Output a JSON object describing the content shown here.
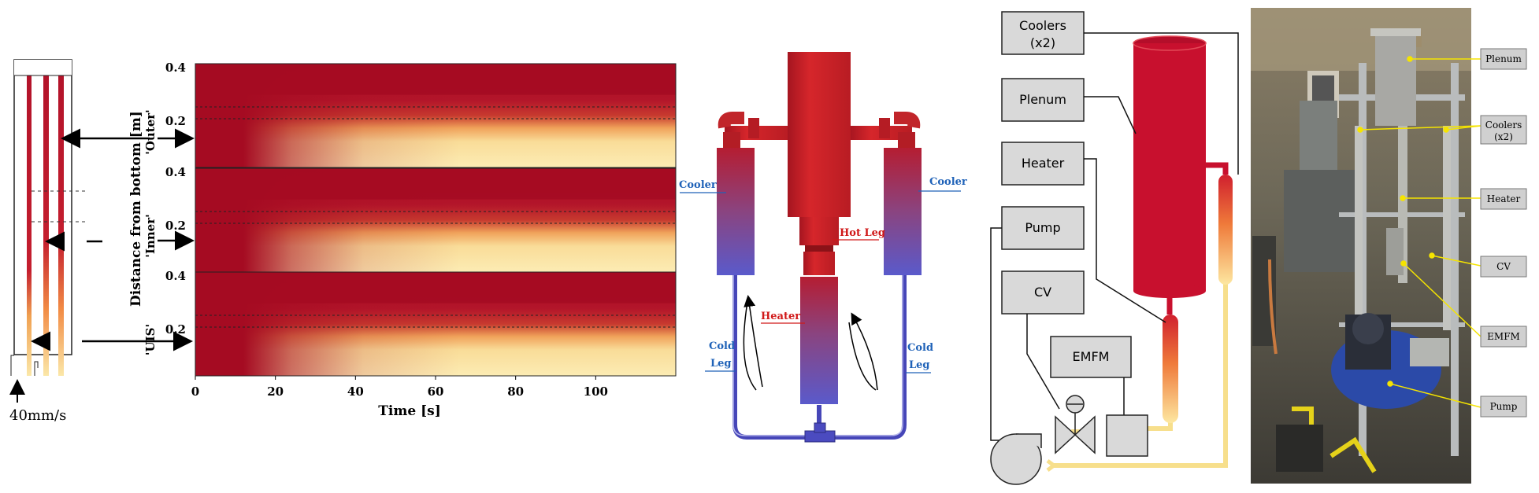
{
  "panel_a": {
    "inlet_velocity": "40mm/s"
  },
  "panel_b": {
    "y_axis_label": "Distance from bottom [m]",
    "x_axis_label": "Time [s]",
    "x_ticks": [
      "0",
      "20",
      "40",
      "60",
      "80",
      "100"
    ],
    "y_ticks": [
      "0.4",
      "0.2"
    ],
    "rows": [
      {
        "label": "'Outer'"
      },
      {
        "label": "'Inner'"
      },
      {
        "label": "'UIS'"
      }
    ],
    "colors": {
      "hot": "#a80d22",
      "mid": "#e8603a",
      "cold": "#fbeaa8"
    }
  },
  "panel_c": {
    "labels": {
      "cooler_left": "Cooler",
      "cooler_right": "Cooler",
      "hot_leg": "Hot Leg",
      "heater": "Heater",
      "cold_leg_left_1": "Cold",
      "cold_leg_left_2": "Leg",
      "cold_leg_right_1": "Cold",
      "cold_leg_right_2": "Leg"
    },
    "colors": {
      "hot": "#c81e25",
      "cold": "#5a5acb",
      "label_blue": "#1f62b8",
      "label_red": "#d01818"
    }
  },
  "panel_d": {
    "boxes": {
      "coolers_1": "Coolers",
      "coolers_2": "(x2)",
      "plenum": "Plenum",
      "heater": "Heater",
      "pump": "Pump",
      "cv": "CV",
      "emfm": "EMFM"
    },
    "colors": {
      "tank": "#c8102e",
      "pipe": "#f7df8c",
      "box_fill": "#d9d9d9"
    }
  },
  "panel_e": {
    "labels": [
      "Plenum",
      "Coolers\n(x2)",
      "Heater",
      "CV",
      "EMFM",
      "Pump"
    ],
    "label_plenum": "Plenum",
    "label_coolers_1": "Coolers",
    "label_coolers_2": "(x2)",
    "label_heater": "Heater",
    "label_cv": "CV",
    "label_emfm": "EMFM",
    "label_pump": "Pump",
    "leader_color": "#f5e400"
  }
}
